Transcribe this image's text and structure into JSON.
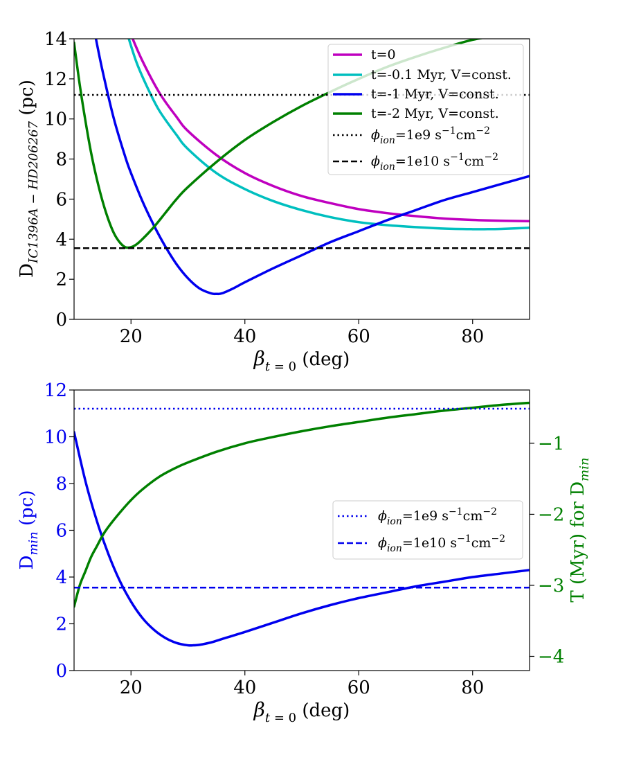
{
  "chart_data": [
    {
      "type": "line",
      "xlabel": "β_{t=0} (deg)",
      "ylabel": "D_{IC1396A−HD206267} (pc)",
      "xlim": [
        10,
        90
      ],
      "ylim": [
        0,
        14
      ],
      "xticks": [
        20,
        40,
        60,
        80
      ],
      "yticks": [
        0,
        2,
        4,
        6,
        8,
        10,
        12,
        14
      ],
      "legend_position": "top-right",
      "series": [
        {
          "name": "t=0",
          "color": "#bf00bf",
          "style": "solid",
          "x": [
            20,
            22,
            25,
            28,
            30,
            35,
            40,
            45,
            50,
            55,
            60,
            65,
            70,
            75,
            80,
            85,
            90
          ],
          "y": [
            14.2,
            12.9,
            11.3,
            10.1,
            9.4,
            8.2,
            7.3,
            6.65,
            6.15,
            5.8,
            5.5,
            5.3,
            5.15,
            5.03,
            4.96,
            4.92,
            4.9
          ]
        },
        {
          "name": "t=-0.1 Myr, V=const.",
          "color": "#00bfbf",
          "style": "solid",
          "x": [
            19.4,
            21,
            23,
            25,
            28,
            30,
            35,
            40,
            45,
            50,
            55,
            60,
            65,
            70,
            75,
            80,
            82,
            85,
            90
          ],
          "y": [
            14.2,
            12.8,
            11.5,
            10.4,
            9.2,
            8.5,
            7.3,
            6.5,
            5.9,
            5.45,
            5.1,
            4.85,
            4.7,
            4.6,
            4.53,
            4.5,
            4.5,
            4.51,
            4.57
          ]
        },
        {
          "name": "t=-1 Myr, V=const.",
          "color": "#0000ee",
          "style": "solid",
          "x": [
            13.7,
            15,
            17,
            19,
            20,
            22,
            24,
            26,
            28,
            30,
            32,
            34,
            35,
            36,
            38,
            40,
            45,
            50,
            55,
            60,
            65,
            70,
            75,
            80,
            85,
            90
          ],
          "y": [
            14.2,
            12.4,
            10.0,
            8.1,
            7.3,
            5.9,
            4.7,
            3.65,
            2.75,
            2.05,
            1.55,
            1.3,
            1.27,
            1.3,
            1.55,
            1.85,
            2.55,
            3.2,
            3.85,
            4.4,
            4.95,
            5.45,
            5.95,
            6.35,
            6.75,
            7.15
          ]
        },
        {
          "name": "t=-2 Myr, V=const.",
          "color": "#008000",
          "style": "solid",
          "x": [
            10,
            11,
            12,
            13,
            14,
            15,
            16,
            17,
            18,
            19,
            20,
            21,
            22,
            24,
            26,
            28,
            30,
            35,
            40,
            45,
            50,
            55,
            60,
            65,
            70,
            75,
            80,
            85,
            90
          ],
          "y": [
            13.8,
            11.7,
            9.9,
            8.3,
            7.0,
            5.9,
            5.0,
            4.3,
            3.85,
            3.6,
            3.6,
            3.75,
            4.0,
            4.6,
            5.3,
            6.0,
            6.6,
            7.85,
            8.95,
            9.85,
            10.65,
            11.35,
            12.0,
            12.6,
            13.1,
            13.55,
            13.95,
            14.2,
            14.5
          ]
        },
        {
          "name": "ϕ_{ion}=1e9 s^{-1}cm^{-2}",
          "color": "#000000",
          "style": "dotted",
          "x": [
            10,
            90
          ],
          "y": [
            11.2,
            11.2
          ]
        },
        {
          "name": "ϕ_{ion}=1e10 s^{-1}cm^{-2}",
          "color": "#000000",
          "style": "dashed",
          "x": [
            10,
            90
          ],
          "y": [
            3.55,
            3.55
          ]
        }
      ]
    },
    {
      "type": "line",
      "xlabel": "β_{t=0} (deg)",
      "ylabel": "D_{min} (pc)",
      "ylabel_right": "T (Myr) for D_{min}",
      "xlim": [
        10,
        90
      ],
      "ylim": [
        0,
        12
      ],
      "ylim_right": [
        -4.2,
        -0.25
      ],
      "xticks": [
        20,
        40,
        60,
        80
      ],
      "yticks": [
        0,
        2,
        4,
        6,
        8,
        10,
        12
      ],
      "yticks_right": [
        -4,
        -3,
        -2,
        -1
      ],
      "left_axis_color": "#0000ee",
      "right_axis_color": "#008000",
      "legend_position": "center-right",
      "series": [
        {
          "name": "D_min",
          "axis": "left",
          "color": "#0000ee",
          "style": "solid",
          "x": [
            10,
            12,
            14,
            16,
            18,
            20,
            22,
            24,
            26,
            28,
            30,
            31,
            32,
            34,
            36,
            40,
            45,
            50,
            55,
            60,
            65,
            70,
            75,
            80,
            85,
            90
          ],
          "y": [
            10.2,
            8.1,
            6.4,
            5.0,
            3.85,
            2.95,
            2.25,
            1.75,
            1.4,
            1.18,
            1.08,
            1.08,
            1.1,
            1.2,
            1.35,
            1.65,
            2.05,
            2.45,
            2.8,
            3.1,
            3.35,
            3.6,
            3.8,
            4.0,
            4.15,
            4.3
          ]
        },
        {
          "name": "T (Myr) for D_min",
          "axis": "right",
          "color": "#008000",
          "style": "solid",
          "x": [
            10,
            11,
            12,
            13,
            14,
            15,
            16,
            18,
            20,
            22,
            25,
            28,
            30,
            35,
            40,
            45,
            50,
            55,
            60,
            65,
            70,
            75,
            80,
            85,
            90
          ],
          "y": [
            -3.3,
            -3.0,
            -2.8,
            -2.6,
            -2.45,
            -2.3,
            -2.18,
            -1.98,
            -1.8,
            -1.65,
            -1.47,
            -1.34,
            -1.27,
            -1.12,
            -1.0,
            -0.91,
            -0.83,
            -0.76,
            -0.7,
            -0.64,
            -0.59,
            -0.54,
            -0.5,
            -0.46,
            -0.43
          ]
        },
        {
          "name": "ϕ_{ion}=1e9 s^{-1}cm^{-2}",
          "axis": "left",
          "color": "#0000ee",
          "style": "dotted",
          "x": [
            10,
            90
          ],
          "y": [
            11.2,
            11.2
          ]
        },
        {
          "name": "ϕ_{ion}=1e10 s^{-1}cm^{-2}",
          "axis": "left",
          "color": "#0000ee",
          "style": "dashed",
          "x": [
            10,
            90
          ],
          "y": [
            3.55,
            3.55
          ]
        }
      ]
    }
  ]
}
